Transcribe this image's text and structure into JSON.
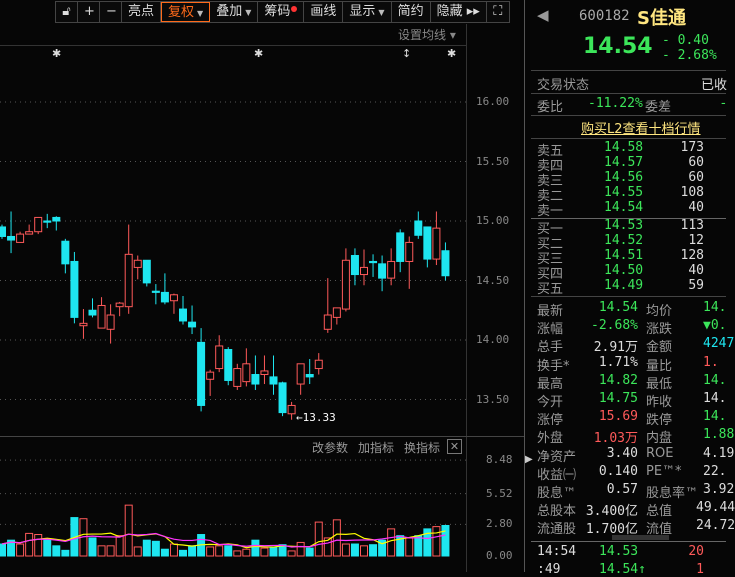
{
  "toolbar": {
    "items": [
      {
        "label": "亮点"
      },
      {
        "label": "复权",
        "active": true,
        "caret": true
      },
      {
        "label": "叠加",
        "caret": true
      },
      {
        "label": "筹码",
        "dot": true
      },
      {
        "label": "画线"
      },
      {
        "label": "显示",
        "caret": true
      },
      {
        "label": "简约"
      },
      {
        "label": "隐藏 ▸▸"
      }
    ]
  },
  "chart": {
    "ma_setting": "设置均线 ▾",
    "price_ticks": [
      "16.00",
      "15.50",
      "15.00",
      "14.50",
      "14.00",
      "13.50"
    ],
    "low_label": "←13.33",
    "candles": [
      [
        14.95,
        14.97,
        14.85,
        14.87
      ],
      [
        14.87,
        15.08,
        14.73,
        14.84
      ],
      [
        14.82,
        14.91,
        14.82,
        14.89
      ],
      [
        14.89,
        14.97,
        14.89,
        14.91
      ],
      [
        14.91,
        15.03,
        14.89,
        15.03
      ],
      [
        15.0,
        15.06,
        14.94,
        14.99
      ],
      [
        15.03,
        15.04,
        14.92,
        15.0
      ],
      [
        14.83,
        14.85,
        14.56,
        14.64
      ],
      [
        14.66,
        14.74,
        14.14,
        14.19
      ],
      [
        14.12,
        14.26,
        14.01,
        14.14
      ],
      [
        14.25,
        14.35,
        14.19,
        14.21
      ],
      [
        14.1,
        14.36,
        14.1,
        14.29
      ],
      [
        14.09,
        14.3,
        13.97,
        14.21
      ],
      [
        14.28,
        14.32,
        14.2,
        14.31
      ],
      [
        14.28,
        14.97,
        14.22,
        14.72
      ],
      [
        14.61,
        14.71,
        14.51,
        14.67
      ],
      [
        14.67,
        14.67,
        14.45,
        14.48
      ],
      [
        14.41,
        14.47,
        14.3,
        14.4
      ],
      [
        14.4,
        14.56,
        14.3,
        14.32
      ],
      [
        14.33,
        14.39,
        14.22,
        14.38
      ],
      [
        14.26,
        14.37,
        14.13,
        14.16
      ],
      [
        14.15,
        14.29,
        14.05,
        14.11
      ],
      [
        13.98,
        14.1,
        13.4,
        13.45
      ],
      [
        13.67,
        13.75,
        13.53,
        13.73
      ],
      [
        13.76,
        14.04,
        13.73,
        13.95
      ],
      [
        13.92,
        13.94,
        13.62,
        13.66
      ],
      [
        13.61,
        13.8,
        13.58,
        13.76
      ],
      [
        13.65,
        13.93,
        13.61,
        13.8
      ],
      [
        13.71,
        13.87,
        13.58,
        13.63
      ],
      [
        13.71,
        13.87,
        13.63,
        13.74
      ],
      [
        13.69,
        13.87,
        13.54,
        13.63
      ],
      [
        13.64,
        13.65,
        13.36,
        13.39
      ],
      [
        13.38,
        13.48,
        13.33,
        13.45
      ],
      [
        13.63,
        13.8,
        13.54,
        13.8
      ],
      [
        13.71,
        13.84,
        13.63,
        13.69
      ],
      [
        13.76,
        13.89,
        13.71,
        13.83
      ],
      [
        14.09,
        14.52,
        14.06,
        14.21
      ],
      [
        14.19,
        14.26,
        14.13,
        14.27
      ],
      [
        14.26,
        14.77,
        14.24,
        14.67
      ],
      [
        14.71,
        14.77,
        14.46,
        14.55
      ],
      [
        14.55,
        14.76,
        14.46,
        14.61
      ],
      [
        14.66,
        14.72,
        14.53,
        14.65
      ],
      [
        14.64,
        14.71,
        14.41,
        14.52
      ],
      [
        14.52,
        14.77,
        14.46,
        14.66
      ],
      [
        14.9,
        14.93,
        14.57,
        14.66
      ],
      [
        14.66,
        14.87,
        14.43,
        14.82
      ],
      [
        15.0,
        15.08,
        14.85,
        14.88
      ],
      [
        14.95,
        14.95,
        14.61,
        14.68
      ],
      [
        14.68,
        15.08,
        14.63,
        14.94
      ],
      [
        14.75,
        14.82,
        14.5,
        14.54
      ]
    ],
    "colors": {
      "up": "#ff5a5a",
      "down": "#1ee6f0",
      "ma_short": "#ffff00",
      "ma_long": "#ff33ff"
    }
  },
  "volume": {
    "buttons": [
      "改参数",
      "加指标",
      "换指标"
    ],
    "ticks": [
      "8.48",
      "5.52",
      "2.80",
      "0.00"
    ],
    "values": [
      1.06,
      1.4,
      1.06,
      2.0,
      1.9,
      1.5,
      0.9,
      0.5,
      3.4,
      3.3,
      1.6,
      0.9,
      0.9,
      1.8,
      4.5,
      0.8,
      1.4,
      1.3,
      0.6,
      1.06,
      0.5,
      0.9,
      1.9,
      0.8,
      0.9,
      0.9,
      0.45,
      0.6,
      1.4,
      0.7,
      0.8,
      1.0,
      0.45,
      1.2,
      0.7,
      3.0,
      1.6,
      3.2,
      1.06,
      1.06,
      0.9,
      1.0,
      1.4,
      2.4,
      1.8,
      1.6,
      1.8,
      2.4,
      2.6,
      2.7
    ]
  },
  "quote": {
    "code": "600182",
    "name": "S佳通",
    "price": "14.54",
    "change": "- 0.40",
    "change_pct": "- 2.68%",
    "status_label": "交易状态",
    "status_value": "已收",
    "weibi_label": "委比",
    "weibi": "-11.22%",
    "weicha_label": "委差",
    "weicha": "-",
    "l2_link": "购买L2查看十档行情",
    "asks": [
      {
        "label": "卖五",
        "price": "14.58",
        "vol": "173"
      },
      {
        "label": "卖四",
        "price": "14.57",
        "vol": "60"
      },
      {
        "label": "卖三",
        "price": "14.56",
        "vol": "60"
      },
      {
        "label": "卖二",
        "price": "14.55",
        "vol": "108"
      },
      {
        "label": "卖一",
        "price": "14.54",
        "vol": "40"
      }
    ],
    "bids": [
      {
        "label": "买一",
        "price": "14.53",
        "vol": "113"
      },
      {
        "label": "买二",
        "price": "14.52",
        "vol": "12"
      },
      {
        "label": "买三",
        "price": "14.51",
        "vol": "128"
      },
      {
        "label": "买四",
        "price": "14.50",
        "vol": "40"
      },
      {
        "label": "买五",
        "price": "14.49",
        "vol": "59"
      }
    ],
    "stats": [
      {
        "l1": "最新",
        "v1": "14.54",
        "c1": "g",
        "l2": "均价",
        "v2": "14.",
        "c2": "g"
      },
      {
        "l1": "涨幅",
        "v1": "-2.68%",
        "c1": "g",
        "l2": "涨跌",
        "v2": "▼0.",
        "c2": "g"
      },
      {
        "l1": "总手",
        "v1": "2.91万",
        "c1": "w",
        "l2": "金额",
        "v2": "4247",
        "c2": "cy"
      },
      {
        "l1": "换手*",
        "v1": "1.71%",
        "c1": "w",
        "l2": "量比",
        "v2": "1.",
        "c2": "rd"
      },
      {
        "l1": "最高",
        "v1": "14.82",
        "c1": "g",
        "l2": "最低",
        "v2": "14.",
        "c2": "g"
      },
      {
        "l1": "今开",
        "v1": "14.75",
        "c1": "g",
        "l2": "昨收",
        "v2": "14.",
        "c2": "w"
      },
      {
        "l1": "涨停",
        "v1": "15.69",
        "c1": "rd",
        "l2": "跌停",
        "v2": "14.",
        "c2": "g"
      },
      {
        "l1": "外盘",
        "v1": "1.03万",
        "c1": "rd",
        "l2": "内盘",
        "v2": "1.88",
        "c2": "g"
      },
      {
        "l1": "净资产",
        "v1": "3.40",
        "c1": "w",
        "l2": "ROE",
        "v2": "4.19",
        "c2": "w"
      },
      {
        "l1": "收益㈠",
        "v1": "0.140",
        "c1": "w",
        "l2": "PE™*",
        "v2": "22.",
        "c2": "w"
      },
      {
        "l1": "股息™",
        "v1": "0.57",
        "c1": "w",
        "l2": "股息率™",
        "v2": "3.92",
        "c2": "w"
      },
      {
        "l1": "总股本",
        "v1": "3.400亿",
        "c1": "w",
        "l2": "总值",
        "v2": "49.44",
        "c2": "w"
      },
      {
        "l1": "流通股",
        "v1": "1.700亿",
        "c1": "w",
        "l2": "流值",
        "v2": "24.72",
        "c2": "w"
      }
    ],
    "ticks": [
      {
        "time": "14:54",
        "price": "14.53",
        "vol": "20"
      },
      {
        "time": ":49",
        "price": "14.54↑",
        "vol": "1"
      }
    ]
  }
}
